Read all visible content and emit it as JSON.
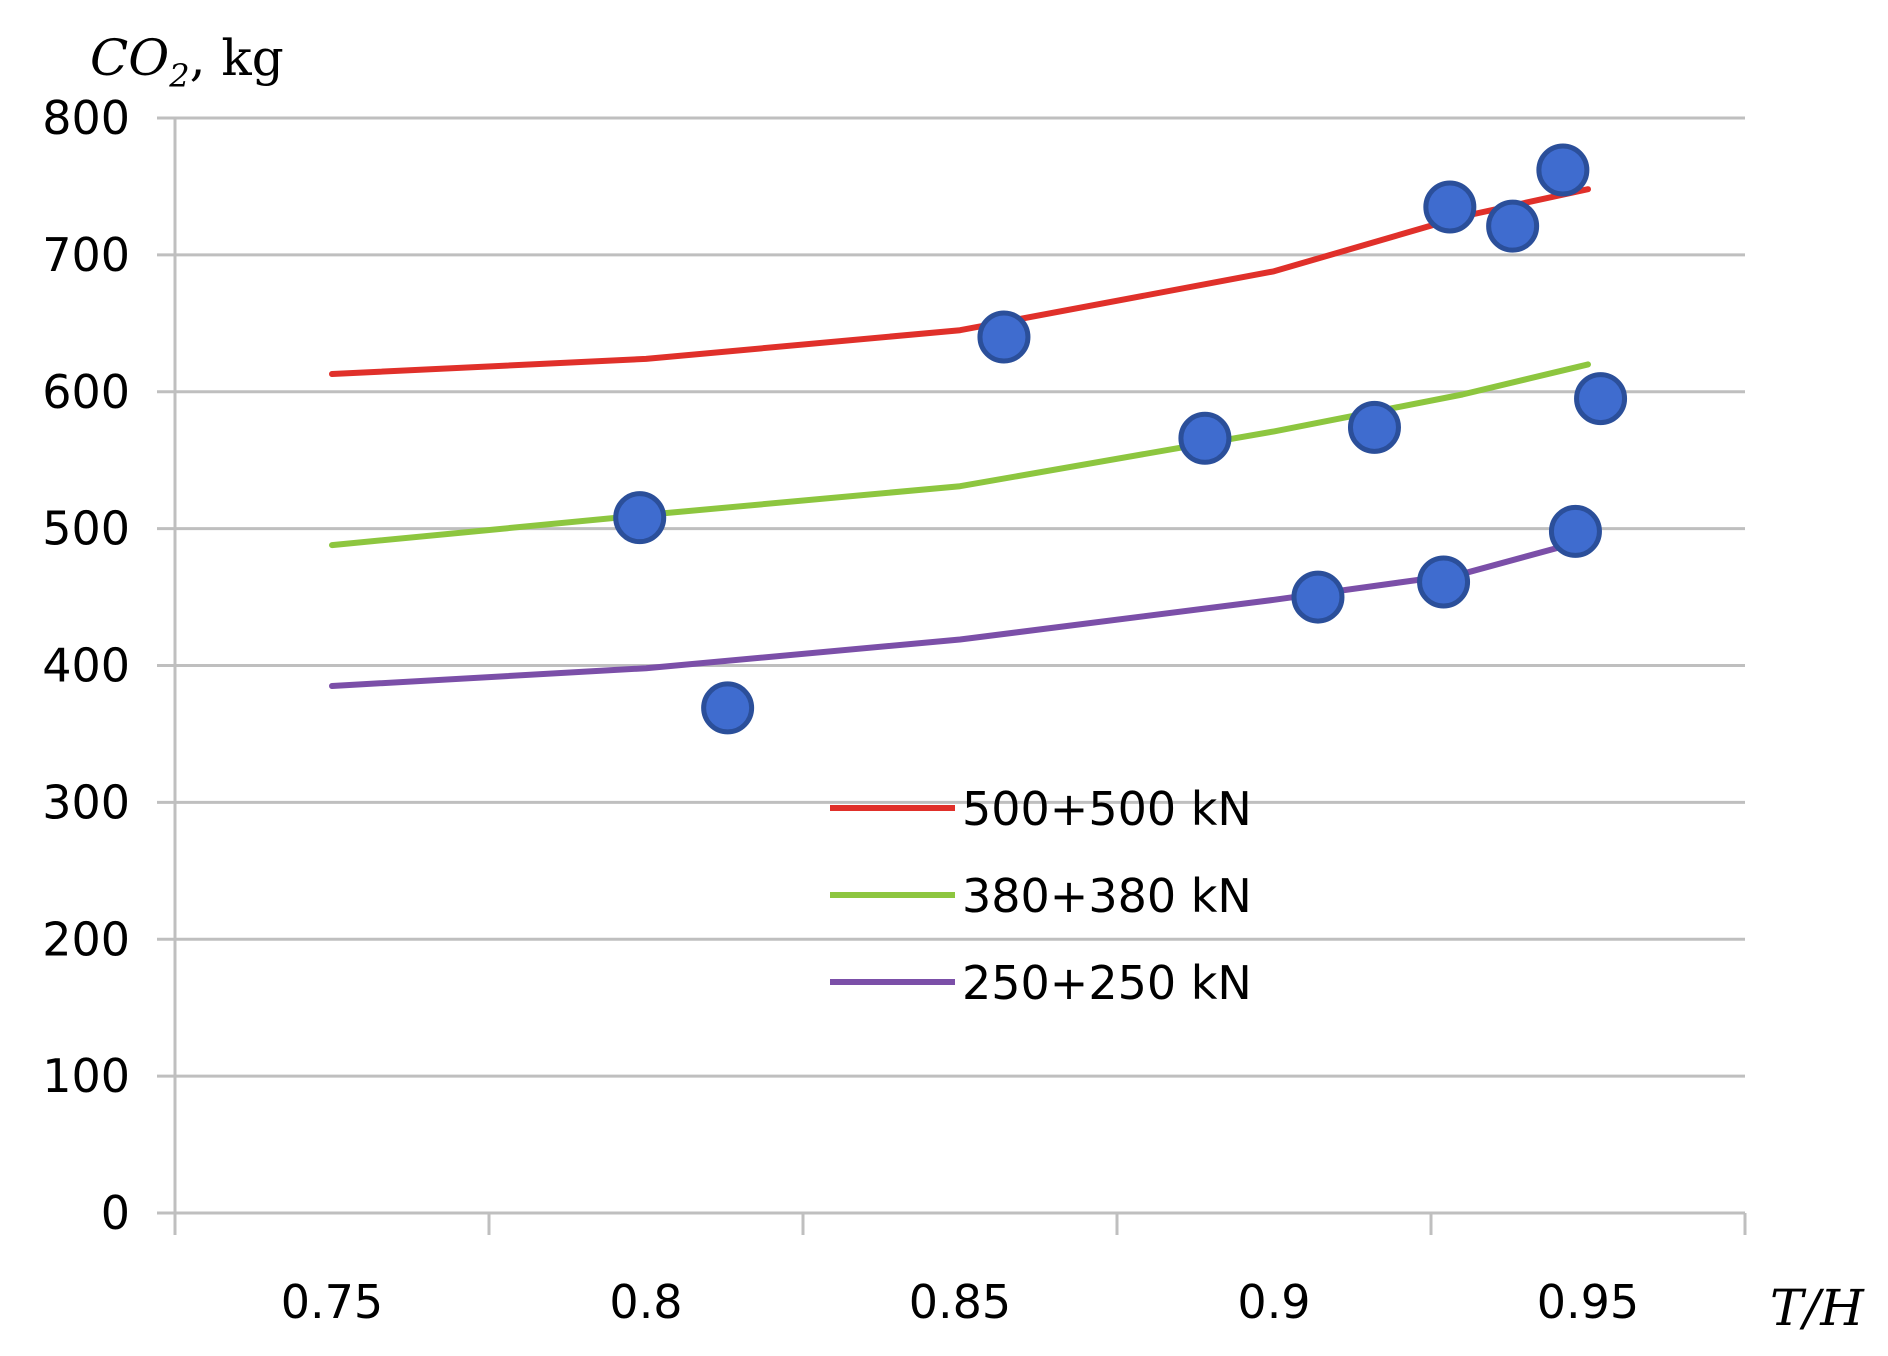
{
  "chart_data": {
    "type": "line",
    "ylabel": "CO",
    "ylabel_subscript": "2",
    "ylabel_unit": ", kg",
    "xlabel": "T/H",
    "ylim": [
      0,
      800
    ],
    "xlim": [
      0.725,
      0.975
    ],
    "yticks": [
      0,
      100,
      200,
      300,
      400,
      500,
      600,
      700,
      800
    ],
    "yticklabels": [
      "0",
      "100",
      "200",
      "300",
      "400",
      "500",
      "600",
      "700",
      "800"
    ],
    "xticks": [
      0.75,
      0.8,
      0.85,
      0.9,
      0.95
    ],
    "xticklabels": [
      "0.75",
      "0.8",
      "0.85",
      "0.9",
      "0.95"
    ],
    "grid": "horizontal",
    "legend_position": "center",
    "series": [
      {
        "name": "500+500 kN",
        "color": "#e0302a",
        "x": [
          0.75,
          0.8,
          0.85,
          0.9,
          0.93,
          0.95
        ],
        "y": [
          613,
          624,
          645,
          688,
          728,
          748
        ]
      },
      {
        "name": "380+380 kN",
        "color": "#8dc63f",
        "x": [
          0.75,
          0.8,
          0.85,
          0.9,
          0.93,
          0.95
        ],
        "y": [
          488,
          510,
          531,
          571,
          598,
          620
        ]
      },
      {
        "name": "250+250 kN",
        "color": "#7b4fa8",
        "x": [
          0.75,
          0.8,
          0.85,
          0.9,
          0.93,
          0.95
        ],
        "y": [
          385,
          398,
          419,
          448,
          467,
          492
        ]
      }
    ],
    "points": {
      "color": "#3f6ccf",
      "edge_color": "#2b4f9a",
      "x": [
        0.857,
        0.928,
        0.938,
        0.946,
        0.799,
        0.889,
        0.916,
        0.952,
        0.813,
        0.907,
        0.927,
        0.948
      ],
      "y": [
        640,
        735,
        721,
        762,
        508,
        566,
        574,
        595,
        369,
        450,
        461,
        498
      ]
    }
  }
}
